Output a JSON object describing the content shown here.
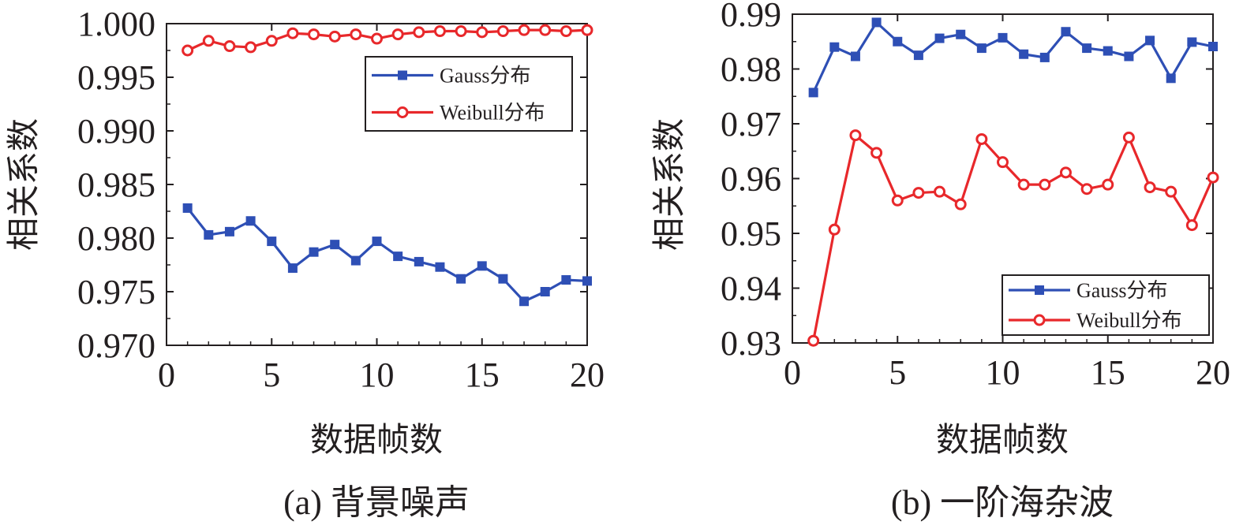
{
  "chart_data": [
    {
      "type": "line",
      "caption": "(a) 背景噪声",
      "xlabel": "数据帧数",
      "ylabel": "相关系数",
      "xlim": [
        0,
        20
      ],
      "ylim": [
        0.97,
        1.0
      ],
      "xticks": [
        0,
        5,
        10,
        15,
        20
      ],
      "xtick_labels": [
        "0",
        "5",
        "10",
        "15",
        "20"
      ],
      "yticks": [
        0.97,
        0.975,
        0.98,
        0.985,
        0.99,
        0.995,
        1.0
      ],
      "ytick_labels": [
        "0.970",
        "0.975",
        "0.980",
        "0.985",
        "0.990",
        "0.995",
        "1.000"
      ],
      "grid": false,
      "legend_position": "top-right",
      "x": [
        1,
        2,
        3,
        4,
        5,
        6,
        7,
        8,
        9,
        10,
        11,
        12,
        13,
        14,
        15,
        16,
        17,
        18,
        19,
        20
      ],
      "series": [
        {
          "name": "Gauss分布",
          "color": "#2e4fb5",
          "marker": "square",
          "values": [
            0.9828,
            0.9803,
            0.9806,
            0.9816,
            0.9797,
            0.9772,
            0.9787,
            0.9794,
            0.9779,
            0.9797,
            0.9783,
            0.9778,
            0.9773,
            0.9762,
            0.9774,
            0.9762,
            0.9741,
            0.975,
            0.9761,
            0.976
          ]
        },
        {
          "name": "Weibull分布",
          "color": "#e8282b",
          "marker": "circle",
          "values": [
            0.9975,
            0.9984,
            0.9979,
            0.9978,
            0.9984,
            0.9991,
            0.999,
            0.9988,
            0.999,
            0.9986,
            0.999,
            0.9992,
            0.9993,
            0.9993,
            0.9992,
            0.9993,
            0.9994,
            0.9994,
            0.9993,
            0.9994
          ]
        }
      ]
    },
    {
      "type": "line",
      "caption": "(b) 一阶海杂波",
      "xlabel": "数据帧数",
      "ylabel": "相关系数",
      "xlim": [
        0,
        20
      ],
      "ylim": [
        0.93,
        0.99
      ],
      "xticks": [
        0,
        5,
        10,
        15,
        20
      ],
      "xtick_labels": [
        "0",
        "5",
        "10",
        "15",
        "20"
      ],
      "yticks": [
        0.93,
        0.94,
        0.95,
        0.96,
        0.97,
        0.98,
        0.99
      ],
      "ytick_labels": [
        "0.93",
        "0.94",
        "0.95",
        "0.96",
        "0.97",
        "0.98",
        "0.99"
      ],
      "grid": false,
      "legend_position": "bottom-right",
      "x": [
        1,
        2,
        3,
        4,
        5,
        6,
        7,
        8,
        9,
        10,
        11,
        12,
        13,
        14,
        15,
        16,
        17,
        18,
        19,
        20
      ],
      "series": [
        {
          "name": "Gauss分布",
          "color": "#2e4fb5",
          "marker": "square",
          "values": [
            0.9757,
            0.984,
            0.9823,
            0.9885,
            0.985,
            0.9825,
            0.9856,
            0.9863,
            0.9838,
            0.9857,
            0.9827,
            0.9821,
            0.9868,
            0.9838,
            0.9833,
            0.9823,
            0.9852,
            0.9783,
            0.9849,
            0.9841
          ]
        },
        {
          "name": "Weibull分布",
          "color": "#e8282b",
          "marker": "circle",
          "values": [
            0.9304,
            0.9507,
            0.9679,
            0.9647,
            0.956,
            0.9574,
            0.9576,
            0.9553,
            0.9672,
            0.963,
            0.9589,
            0.9589,
            0.9611,
            0.9581,
            0.9589,
            0.9675,
            0.9584,
            0.9576,
            0.9515,
            0.9602
          ]
        }
      ]
    }
  ]
}
